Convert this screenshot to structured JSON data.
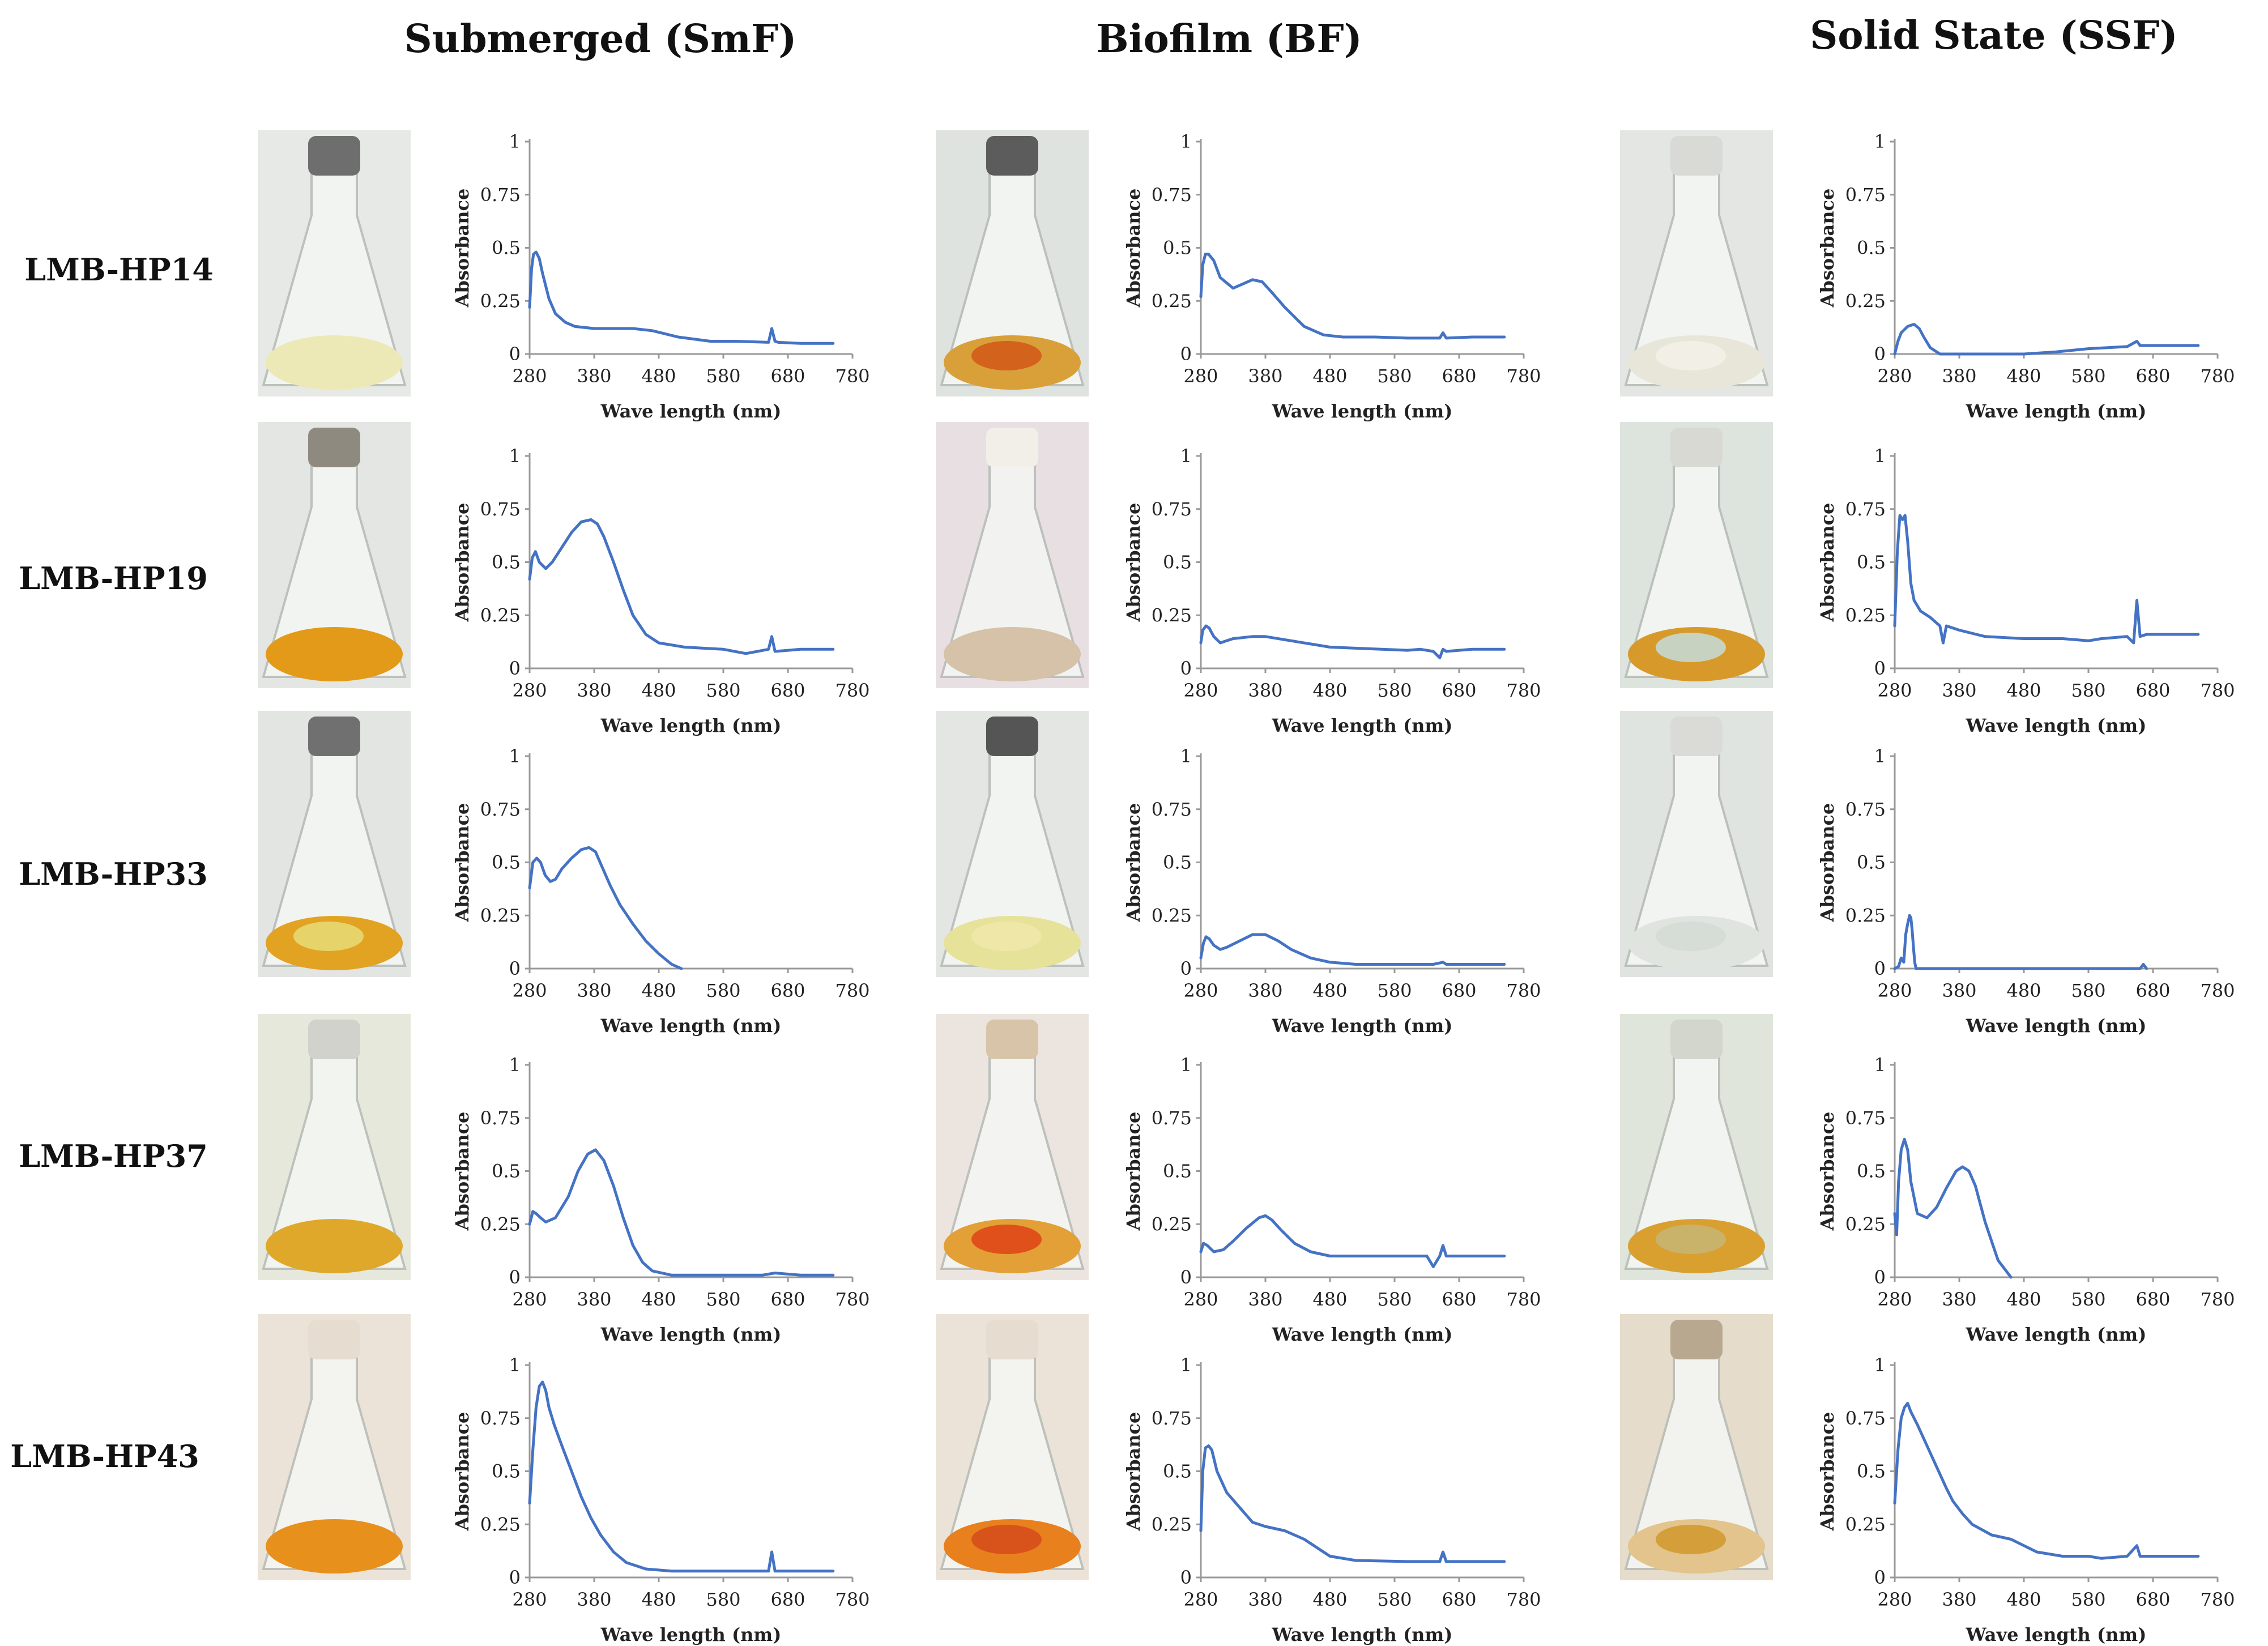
{
  "figure": {
    "column_titles": [
      "Submerged (SmF)",
      "Biofilm (BF)",
      "Solid State (SSF)"
    ],
    "row_labels": [
      "LMB-HP14",
      "LMB-HP19",
      "LMB-HP33",
      "LMB-HP37",
      "LMB-HP43"
    ]
  },
  "photos": [
    [
      {
        "glass": "#e6e9e6",
        "liquid": "#ece9b6",
        "lid": "#6e6e6e",
        "solid": ""
      },
      {
        "glass": "#dfe3e0",
        "liquid": "#d9a03a",
        "lid": "#5c5c5c",
        "solid": "#d2621c"
      },
      {
        "glass": "#e3e6e3",
        "liquid": "#e8e6d8",
        "lid": "#d9dad6",
        "solid": "#f2f0e6"
      }
    ],
    [
      {
        "glass": "#e3e6e3",
        "liquid": "#e39a18",
        "lid": "#8f8a80",
        "solid": ""
      },
      {
        "glass": "#e8dfe3",
        "liquid": "#d6c2a8",
        "lid": "#f2efe8",
        "solid": ""
      },
      {
        "glass": "#dde3dd",
        "liquid": "#d79a2a",
        "lid": "#d9d9d4",
        "solid": "#c8d2c0"
      }
    ],
    [
      {
        "glass": "#e2e5e2",
        "liquid": "#e2a222",
        "lid": "#707070",
        "solid": "#e6d36a"
      },
      {
        "glass": "#e3e6e3",
        "liquid": "#e6e29a",
        "lid": "#555555",
        "solid": "#efe7a8"
      },
      {
        "glass": "#e0e4e0",
        "liquid": "#dfe4de",
        "lid": "#dadbd6",
        "solid": "#d6ddd6"
      }
    ],
    [
      {
        "glass": "#e7e8dc",
        "liquid": "#e0a82a",
        "lid": "#d2d2cc",
        "solid": ""
      },
      {
        "glass": "#ece5df",
        "liquid": "#e2a036",
        "lid": "#d8c4a8",
        "solid": "#e0501a"
      },
      {
        "glass": "#dfe5da",
        "liquid": "#d9a030",
        "lid": "#d3d6cc",
        "solid": "#c9b26a"
      }
    ],
    [
      {
        "glass": "#ece3d8",
        "liquid": "#e8901c",
        "lid": "#e6dccf",
        "solid": ""
      },
      {
        "glass": "#ece3d8",
        "liquid": "#e8801e",
        "lid": "#e6dccf",
        "solid": "#d8531c"
      },
      {
        "glass": "#e6dccb",
        "liquid": "#e2c48c",
        "lid": "#b9a890",
        "solid": "#d49e3a"
      }
    ]
  ],
  "chart_data": {
    "type": "line",
    "grid": false,
    "series_color": "#4472C4",
    "xlabel": "Wave length (nm)",
    "ylabel": "Absorbance",
    "xlim": [
      280,
      780
    ],
    "ylim": [
      0,
      1
    ],
    "x_ticks": [
      "280",
      "380",
      "480",
      "580",
      "680",
      "780"
    ],
    "y_ticks": [
      "0",
      "0.25",
      "0.5",
      "0.75",
      "1"
    ],
    "panels": [
      {
        "strain": "LMB-HP14",
        "method": "SmF",
        "x": [
          280,
          283,
          286,
          290,
          295,
          300,
          310,
          320,
          335,
          350,
          380,
          410,
          440,
          470,
          510,
          560,
          600,
          650,
          655,
          660,
          665,
          700,
          750
        ],
        "y": [
          0.22,
          0.4,
          0.47,
          0.48,
          0.45,
          0.38,
          0.26,
          0.19,
          0.15,
          0.13,
          0.12,
          0.12,
          0.12,
          0.11,
          0.08,
          0.06,
          0.06,
          0.055,
          0.12,
          0.06,
          0.055,
          0.05,
          0.05
        ]
      },
      {
        "strain": "LMB-HP14",
        "method": "BF",
        "x": [
          280,
          283,
          287,
          292,
          300,
          310,
          330,
          345,
          360,
          375,
          390,
          410,
          440,
          470,
          500,
          550,
          600,
          650,
          655,
          660,
          700,
          750
        ],
        "y": [
          0.27,
          0.42,
          0.47,
          0.47,
          0.44,
          0.36,
          0.31,
          0.33,
          0.35,
          0.34,
          0.29,
          0.22,
          0.13,
          0.09,
          0.08,
          0.08,
          0.075,
          0.075,
          0.1,
          0.075,
          0.08,
          0.08
        ]
      },
      {
        "strain": "LMB-HP14",
        "method": "SSF",
        "x": [
          280,
          285,
          290,
          300,
          310,
          318,
          325,
          335,
          350,
          360,
          480,
          530,
          580,
          640,
          655,
          660,
          665,
          700,
          750
        ],
        "y": [
          0.0,
          0.06,
          0.1,
          0.13,
          0.14,
          0.12,
          0.08,
          0.03,
          0.0,
          0.0,
          0.0,
          0.01,
          0.025,
          0.035,
          0.06,
          0.04,
          0.04,
          0.04,
          0.04
        ]
      },
      {
        "strain": "LMB-HP19",
        "method": "SmF",
        "x": [
          280,
          284,
          289,
          295,
          305,
          315,
          330,
          345,
          360,
          375,
          385,
          395,
          410,
          425,
          440,
          460,
          480,
          520,
          580,
          615,
          650,
          655,
          660,
          700,
          750
        ],
        "y": [
          0.42,
          0.52,
          0.55,
          0.5,
          0.47,
          0.5,
          0.57,
          0.64,
          0.69,
          0.7,
          0.68,
          0.62,
          0.5,
          0.37,
          0.25,
          0.16,
          0.12,
          0.1,
          0.09,
          0.07,
          0.09,
          0.15,
          0.08,
          0.09,
          0.09
        ]
      },
      {
        "strain": "LMB-HP19",
        "method": "BF",
        "x": [
          280,
          283,
          288,
          293,
          300,
          310,
          330,
          360,
          380,
          420,
          480,
          560,
          600,
          620,
          640,
          650,
          655,
          660,
          700,
          750
        ],
        "y": [
          0.12,
          0.18,
          0.2,
          0.19,
          0.15,
          0.12,
          0.14,
          0.15,
          0.15,
          0.13,
          0.1,
          0.09,
          0.085,
          0.09,
          0.08,
          0.05,
          0.09,
          0.08,
          0.09,
          0.09
        ]
      },
      {
        "strain": "LMB-HP19",
        "method": "SSF",
        "x": [
          280,
          284,
          288,
          292,
          296,
          300,
          305,
          310,
          320,
          335,
          350,
          355,
          360,
          380,
          420,
          480,
          540,
          580,
          600,
          640,
          650,
          655,
          660,
          670,
          700,
          750
        ],
        "y": [
          0.2,
          0.55,
          0.72,
          0.7,
          0.72,
          0.6,
          0.4,
          0.32,
          0.27,
          0.24,
          0.2,
          0.12,
          0.2,
          0.18,
          0.15,
          0.14,
          0.14,
          0.13,
          0.14,
          0.15,
          0.12,
          0.32,
          0.15,
          0.16,
          0.16,
          0.16
        ]
      },
      {
        "strain": "LMB-HP33",
        "method": "SmF",
        "x": [
          280,
          285,
          291,
          297,
          304,
          312,
          320,
          330,
          345,
          360,
          372,
          382,
          392,
          405,
          420,
          440,
          460,
          480,
          500,
          515
        ],
        "y": [
          0.38,
          0.5,
          0.52,
          0.5,
          0.44,
          0.41,
          0.42,
          0.47,
          0.52,
          0.56,
          0.57,
          0.55,
          0.48,
          0.39,
          0.3,
          0.21,
          0.13,
          0.07,
          0.02,
          0.0
        ]
      },
      {
        "strain": "LMB-HP33",
        "method": "BF",
        "x": [
          280,
          284,
          288,
          293,
          300,
          310,
          320,
          340,
          360,
          380,
          400,
          420,
          450,
          480,
          520,
          580,
          640,
          655,
          660,
          700,
          750
        ],
        "y": [
          0.05,
          0.12,
          0.15,
          0.14,
          0.11,
          0.09,
          0.1,
          0.13,
          0.16,
          0.16,
          0.13,
          0.09,
          0.05,
          0.03,
          0.02,
          0.02,
          0.02,
          0.03,
          0.02,
          0.02,
          0.02
        ]
      },
      {
        "strain": "LMB-HP33",
        "method": "SSF",
        "x": [
          280,
          286,
          290,
          294,
          297,
          300,
          303,
          305,
          307,
          309,
          311,
          313,
          316,
          660,
          665,
          670
        ],
        "y": [
          0.0,
          0.01,
          0.05,
          0.03,
          0.16,
          0.21,
          0.25,
          0.24,
          0.18,
          0.1,
          0.03,
          0.0,
          0.0,
          0.0,
          0.02,
          0.0
        ]
      },
      {
        "strain": "LMB-HP37",
        "method": "SmF",
        "x": [
          280,
          285,
          290,
          297,
          305,
          320,
          340,
          355,
          370,
          382,
          395,
          410,
          425,
          440,
          455,
          470,
          500,
          560,
          640,
          660,
          700,
          750
        ],
        "y": [
          0.25,
          0.31,
          0.3,
          0.28,
          0.26,
          0.28,
          0.38,
          0.5,
          0.58,
          0.6,
          0.55,
          0.43,
          0.28,
          0.15,
          0.07,
          0.03,
          0.01,
          0.01,
          0.01,
          0.02,
          0.01,
          0.01
        ]
      },
      {
        "strain": "LMB-HP37",
        "method": "BF",
        "x": [
          280,
          284,
          290,
          300,
          315,
          330,
          350,
          370,
          380,
          390,
          405,
          425,
          450,
          480,
          520,
          560,
          600,
          630,
          640,
          650,
          655,
          660,
          700,
          750
        ],
        "y": [
          0.12,
          0.16,
          0.15,
          0.12,
          0.13,
          0.17,
          0.23,
          0.28,
          0.29,
          0.27,
          0.22,
          0.16,
          0.12,
          0.1,
          0.1,
          0.1,
          0.1,
          0.1,
          0.05,
          0.1,
          0.15,
          0.1,
          0.1,
          0.1
        ]
      },
      {
        "strain": "LMB-HP37",
        "method": "SSF",
        "x": [
          280,
          283,
          286,
          290,
          295,
          300,
          305,
          315,
          330,
          345,
          360,
          375,
          385,
          395,
          405,
          420,
          440,
          460
        ],
        "y": [
          0.3,
          0.2,
          0.45,
          0.6,
          0.65,
          0.6,
          0.45,
          0.3,
          0.28,
          0.33,
          0.42,
          0.5,
          0.52,
          0.5,
          0.43,
          0.26,
          0.08,
          0.0
        ]
      },
      {
        "strain": "LMB-HP43",
        "method": "SmF",
        "x": [
          280,
          285,
          290,
          295,
          300,
          305,
          310,
          318,
          330,
          345,
          360,
          375,
          390,
          410,
          430,
          460,
          500,
          560,
          640,
          650,
          655,
          660,
          700,
          750
        ],
        "y": [
          0.35,
          0.6,
          0.8,
          0.9,
          0.92,
          0.88,
          0.8,
          0.72,
          0.62,
          0.5,
          0.38,
          0.28,
          0.2,
          0.12,
          0.07,
          0.04,
          0.03,
          0.03,
          0.03,
          0.03,
          0.12,
          0.03,
          0.03,
          0.03
        ]
      },
      {
        "strain": "LMB-HP43",
        "method": "BF",
        "x": [
          280,
          283,
          287,
          292,
          297,
          305,
          320,
          340,
          360,
          380,
          410,
          440,
          460,
          480,
          520,
          600,
          650,
          655,
          660,
          700,
          750
        ],
        "y": [
          0.22,
          0.5,
          0.61,
          0.62,
          0.6,
          0.5,
          0.4,
          0.33,
          0.26,
          0.24,
          0.22,
          0.18,
          0.14,
          0.1,
          0.08,
          0.075,
          0.075,
          0.12,
          0.075,
          0.075,
          0.075
        ]
      },
      {
        "strain": "LMB-HP43",
        "method": "SSF",
        "x": [
          280,
          285,
          290,
          295,
          300,
          305,
          315,
          330,
          345,
          360,
          370,
          375,
          385,
          400,
          430,
          460,
          500,
          540,
          580,
          600,
          640,
          655,
          660,
          700,
          750
        ],
        "y": [
          0.35,
          0.6,
          0.75,
          0.8,
          0.82,
          0.78,
          0.72,
          0.62,
          0.52,
          0.42,
          0.36,
          0.34,
          0.3,
          0.25,
          0.2,
          0.18,
          0.12,
          0.1,
          0.1,
          0.09,
          0.1,
          0.15,
          0.1,
          0.1,
          0.1
        ]
      }
    ]
  }
}
